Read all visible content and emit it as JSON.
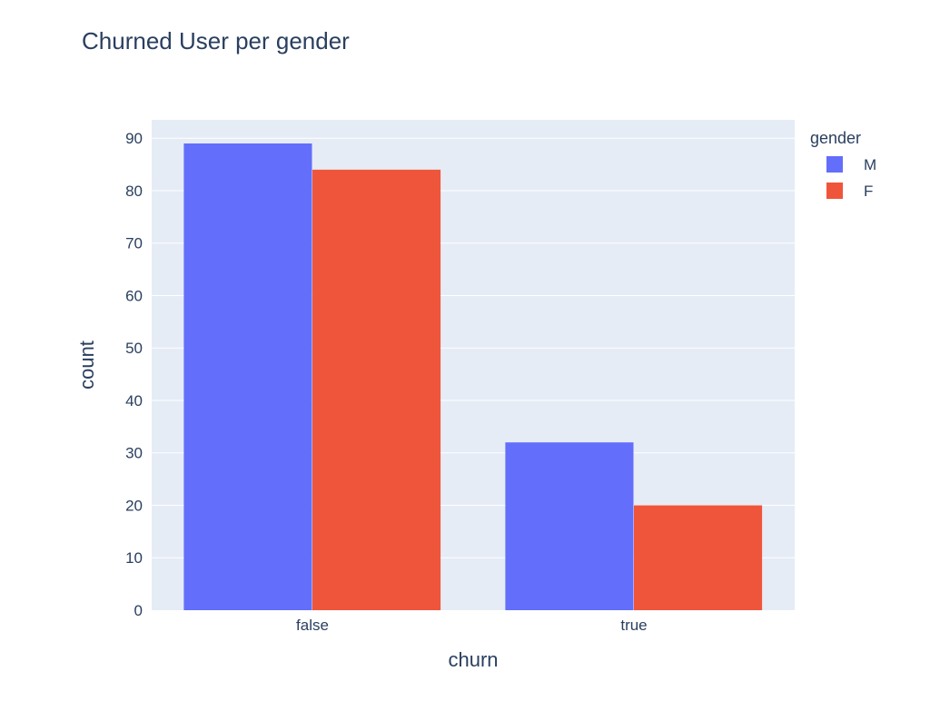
{
  "chart_data": {
    "type": "bar",
    "title": "Churned User per gender",
    "xlabel": "churn",
    "ylabel": "count",
    "categories": [
      "false",
      "true"
    ],
    "series": [
      {
        "name": "M",
        "values": [
          89,
          32
        ]
      },
      {
        "name": "F",
        "values": [
          84,
          20
        ]
      }
    ],
    "ylim": [
      0,
      93.5
    ],
    "yticks": [
      0,
      10,
      20,
      30,
      40,
      50,
      60,
      70,
      80,
      90
    ],
    "grid": true,
    "legend": {
      "title": "gender",
      "placement": "top-right"
    },
    "colors": {
      "M": "#636efa",
      "F": "#ef553b",
      "plot_background": "#e5ecf6",
      "gridline": "#ffffff",
      "text": "#2a3f5f"
    }
  }
}
